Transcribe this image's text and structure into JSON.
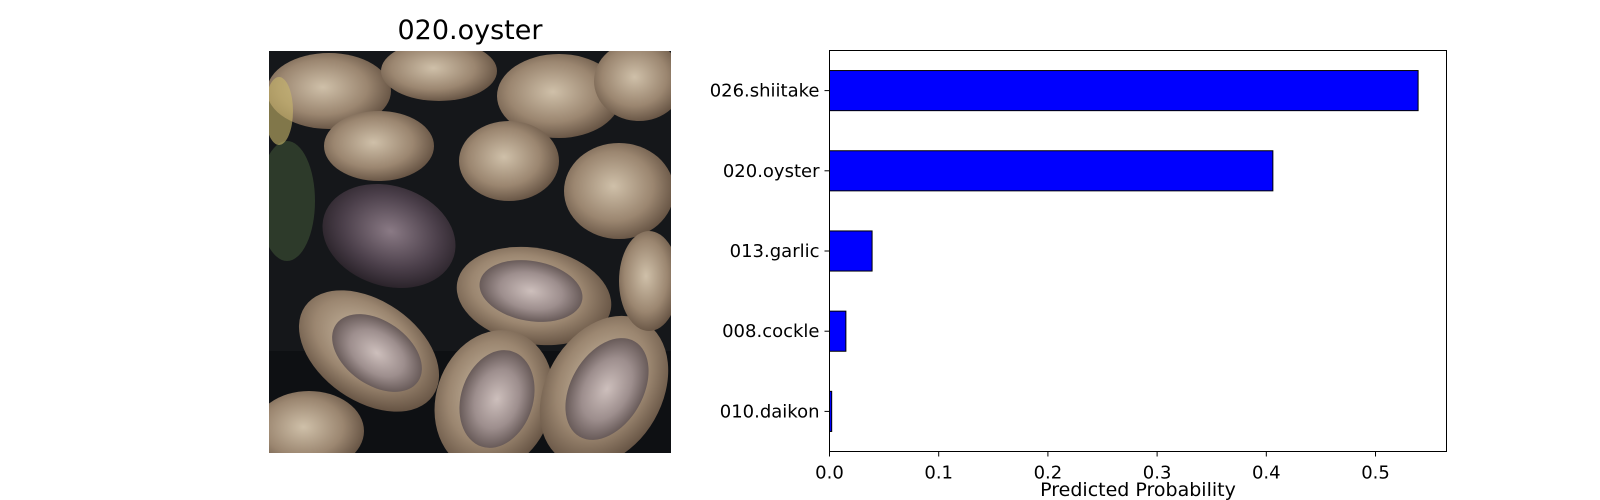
{
  "image_panel": {
    "title": "020.oyster"
  },
  "chart_data": {
    "type": "bar",
    "orientation": "horizontal",
    "categories": [
      "026.shiitake",
      "020.oyster",
      "013.garlic",
      "008.cockle",
      "010.daikon"
    ],
    "values": [
      0.539,
      0.406,
      0.039,
      0.015,
      0.002
    ],
    "xlabel": "Predicted Probability",
    "ylabel": "",
    "title": "",
    "xlim": [
      0,
      0.565
    ],
    "xticks": [
      0.0,
      0.1,
      0.2,
      0.3,
      0.4,
      0.5
    ],
    "xtick_labels": [
      "0.0",
      "0.1",
      "0.2",
      "0.3",
      "0.4",
      "0.5"
    ],
    "grid": false,
    "bar_color": "#0000ff",
    "edge_color": "#000000"
  }
}
